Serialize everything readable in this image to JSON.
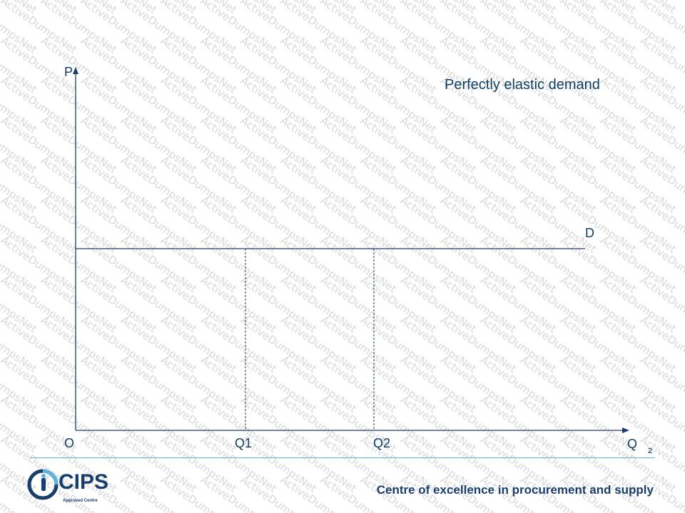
{
  "watermark": {
    "text": "ActiveDumpsNet"
  },
  "diagram": {
    "title": "Perfectly elastic demand",
    "y_axis_label": "P",
    "x_axis_label": "Q",
    "origin_label": "O",
    "curve_label": "D",
    "q_marks": [
      "Q1",
      "Q2"
    ]
  },
  "footer": {
    "page_number": "2",
    "tagline": "Centre of excellence in procurement and supply",
    "logo_text": "CIPS",
    "logo_subtext": "Approved Centre"
  },
  "colors": {
    "axis": "#1a3e6c",
    "text": "#0f3e63",
    "rule": "#5fb3dc"
  }
}
